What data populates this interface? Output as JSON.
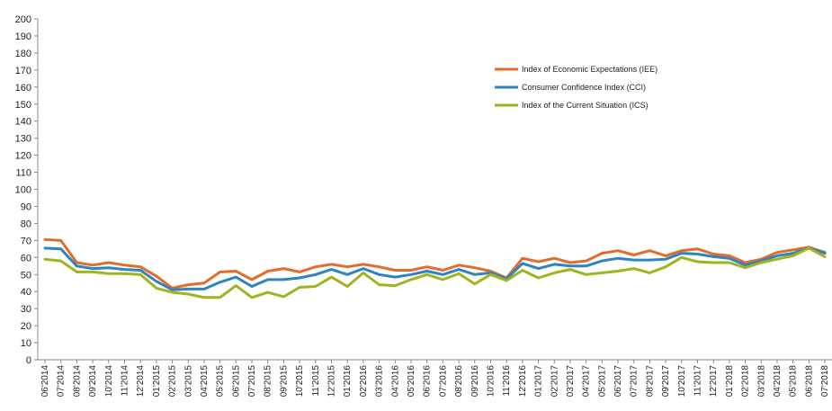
{
  "chart_data": {
    "type": "line",
    "title": "",
    "xlabel": "",
    "ylabel": "",
    "ylim": [
      0,
      200
    ],
    "yticks": [
      0,
      10,
      20,
      30,
      40,
      50,
      60,
      70,
      80,
      90,
      100,
      110,
      120,
      130,
      140,
      150,
      160,
      170,
      180,
      190,
      200
    ],
    "grid": false,
    "legend_position": "top-right",
    "categories": [
      "06'2014",
      "07'2014",
      "08'2014",
      "09'2014",
      "10'2014",
      "11'2014",
      "12'2014",
      "01'2015",
      "02'2015",
      "03'2015",
      "04'2015",
      "05'2015",
      "06'2015",
      "07'2015",
      "08'2015",
      "09'2015",
      "10'2015",
      "11'2015",
      "12'2015",
      "01'2016",
      "02'2016",
      "03'2016",
      "04'2016",
      "05'2016",
      "06'2016",
      "07'2016",
      "08'2016",
      "09'2016",
      "10'2016",
      "11'2016",
      "12'2016",
      "01'2017",
      "02'2017",
      "03'2017",
      "04'2017",
      "05'2017",
      "06'2017",
      "07'2017",
      "08'2017",
      "09'2017",
      "10'2017",
      "11'2017",
      "12'2017",
      "01'2018",
      "02'2018",
      "03'2018",
      "04'2018",
      "05'2018",
      "06'2018",
      "07'2018"
    ],
    "x_tick_labels": [
      "06'2014",
      "07'2014",
      "08'2014",
      "09'2014",
      "10'2014",
      "11'2014",
      "12'2014",
      "01'2015",
      "02'2015",
      "03'2015",
      "04'2015",
      "05'2015",
      "06'2015",
      "07'2015",
      "08'2015",
      "09'2015",
      "10'2015",
      "11'2015",
      "12'2015",
      "01'2016",
      "02'2016",
      "03'2016",
      "04'2016",
      "05'2016",
      "06'2016",
      "07'2016",
      "08'2016",
      "09'2016",
      "10'2016",
      "11'2016",
      "12'2016",
      "01'2017",
      "02'2017",
      "03'2017",
      "04'2017",
      "05'2017",
      "06'2017",
      "07'2017",
      "08'2017",
      "09'2017",
      "10'2017",
      "11'2017",
      "12'2017",
      "01'2018",
      "02'2018",
      "03'2018",
      "04'2018",
      "05'2018",
      "06'2018",
      "07'2018"
    ],
    "series": [
      {
        "name": "Index of Economic Expectations (IEE)",
        "color": "#E36C2C",
        "values": [
          70.5,
          70,
          57,
          55.5,
          57,
          55.5,
          54.5,
          49,
          42,
          44,
          45,
          51.5,
          52,
          47,
          52,
          53.5,
          51.5,
          54.5,
          56,
          54.5,
          56,
          54.5,
          52.5,
          52.5,
          54.5,
          52.5,
          55.5,
          54,
          52,
          48,
          59.5,
          57.5,
          59.5,
          57,
          58,
          62.5,
          64,
          61.5,
          64,
          61,
          64,
          65,
          62,
          61,
          57,
          59,
          63,
          64.5,
          66,
          63
        ]
      },
      {
        "name": "Consumer Confidence Index (CCI)",
        "color": "#2C84C0",
        "values": [
          65.5,
          65,
          55,
          53.5,
          54,
          53,
          52.5,
          46,
          41,
          41.5,
          41.5,
          45.5,
          48.5,
          43,
          47,
          47,
          48,
          50,
          53,
          50,
          53.5,
          50,
          48.5,
          50,
          52,
          50,
          53,
          50,
          51,
          47.5,
          56.5,
          53.5,
          56,
          55,
          55,
          58,
          59.5,
          58.5,
          58.5,
          59,
          62.5,
          62,
          60.5,
          59.5,
          55.5,
          58,
          61,
          62.5,
          65.5,
          62.5
        ]
      },
      {
        "name": "Index of the Current Situation (ICS)",
        "color": "#A0B41E",
        "values": [
          59,
          58,
          51.5,
          51.5,
          50.5,
          50.5,
          50,
          42,
          39.5,
          38.5,
          36.5,
          36.5,
          43.5,
          36.5,
          39.5,
          37,
          42.5,
          43,
          48.5,
          43,
          51,
          44,
          43.5,
          47,
          50,
          47,
          50.5,
          44.5,
          50,
          46.5,
          52.5,
          48,
          51,
          53,
          50,
          51,
          52,
          53.5,
          51,
          54.5,
          60,
          57.5,
          57,
          57,
          54,
          57,
          59,
          61,
          65.5,
          60.5
        ]
      }
    ]
  }
}
